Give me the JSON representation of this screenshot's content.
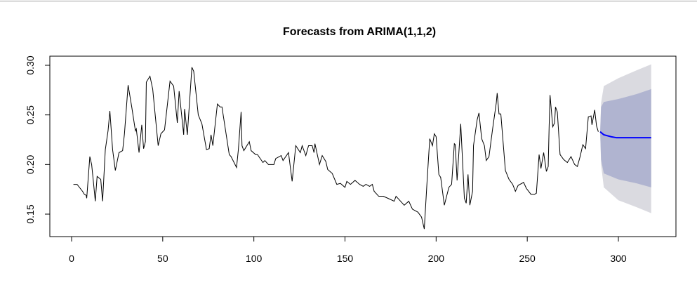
{
  "chart_data": {
    "type": "line",
    "title": "Forecasts from ARIMA(1,1,2)",
    "xlabel": "",
    "ylabel": "",
    "xlim": [
      -12,
      330
    ],
    "ylim": [
      0.127,
      0.309
    ],
    "xticks": [
      0,
      50,
      100,
      150,
      200,
      250,
      300
    ],
    "yticks": [
      0.15,
      0.2,
      0.25,
      0.3
    ],
    "xtick_labels": [
      "0",
      "50",
      "100",
      "150",
      "200",
      "250",
      "300"
    ],
    "ytick_labels": [
      "0.15",
      "0.20",
      "0.25",
      "0.30"
    ],
    "grid": false,
    "colors": {
      "observed": "#000000",
      "forecast": "#0000ff",
      "band80": "#b0b4d0",
      "band95": "#dadae0"
    },
    "observed": [
      [
        1,
        0.18
      ],
      [
        3,
        0.18
      ],
      [
        6,
        0.173
      ],
      [
        7,
        0.17
      ],
      [
        8,
        0.169
      ],
      [
        8.3,
        0.166
      ],
      [
        10,
        0.208
      ],
      [
        11,
        0.2
      ],
      [
        12,
        0.182
      ],
      [
        13,
        0.163
      ],
      [
        14,
        0.188
      ],
      [
        16,
        0.185
      ],
      [
        17,
        0.163
      ],
      [
        17.5,
        0.18
      ],
      [
        18.5,
        0.215
      ],
      [
        20,
        0.234
      ],
      [
        21,
        0.254
      ],
      [
        22.5,
        0.215
      ],
      [
        24,
        0.194
      ],
      [
        26,
        0.212
      ],
      [
        28,
        0.214
      ],
      [
        29,
        0.231
      ],
      [
        31,
        0.28
      ],
      [
        33,
        0.258
      ],
      [
        35,
        0.234
      ],
      [
        35.5,
        0.236
      ],
      [
        37,
        0.212
      ],
      [
        38.5,
        0.24
      ],
      [
        39.5,
        0.216
      ],
      [
        40.5,
        0.223
      ],
      [
        41,
        0.283
      ],
      [
        43,
        0.289
      ],
      [
        44.5,
        0.276
      ],
      [
        47.5,
        0.219
      ],
      [
        49,
        0.231
      ],
      [
        51,
        0.235
      ],
      [
        54,
        0.284
      ],
      [
        56,
        0.279
      ],
      [
        58,
        0.242
      ],
      [
        59,
        0.274
      ],
      [
        61.5,
        0.23
      ],
      [
        62,
        0.256
      ],
      [
        63.5,
        0.23
      ],
      [
        66,
        0.298
      ],
      [
        67,
        0.294
      ],
      [
        69.5,
        0.25
      ],
      [
        71.5,
        0.241
      ],
      [
        74,
        0.215
      ],
      [
        75.5,
        0.216
      ],
      [
        76.5,
        0.23
      ],
      [
        77.5,
        0.219
      ],
      [
        80,
        0.261
      ],
      [
        81.5,
        0.258
      ],
      [
        82.5,
        0.258
      ],
      [
        86.5,
        0.21
      ],
      [
        87.5,
        0.208
      ],
      [
        90.5,
        0.197
      ],
      [
        91.5,
        0.215
      ],
      [
        93,
        0.253
      ],
      [
        93.5,
        0.219
      ],
      [
        94.5,
        0.214
      ],
      [
        97.5,
        0.223
      ],
      [
        98.5,
        0.214
      ],
      [
        101,
        0.21
      ],
      [
        102,
        0.21
      ],
      [
        105,
        0.202
      ],
      [
        106,
        0.204
      ],
      [
        108,
        0.2
      ],
      [
        111,
        0.2
      ],
      [
        112,
        0.206
      ],
      [
        115,
        0.209
      ],
      [
        116,
        0.204
      ],
      [
        119,
        0.212
      ],
      [
        121,
        0.183
      ],
      [
        123,
        0.219
      ],
      [
        125.5,
        0.212
      ],
      [
        126.5,
        0.219
      ],
      [
        128.5,
        0.209
      ],
      [
        130,
        0.219
      ],
      [
        132,
        0.219
      ],
      [
        133,
        0.212
      ],
      [
        133.5,
        0.221
      ],
      [
        136,
        0.2
      ],
      [
        137.5,
        0.209
      ],
      [
        139.5,
        0.203
      ],
      [
        140.5,
        0.195
      ],
      [
        143,
        0.191
      ],
      [
        145.5,
        0.18
      ],
      [
        147.5,
        0.181
      ],
      [
        150,
        0.177
      ],
      [
        151,
        0.183
      ],
      [
        153,
        0.18
      ],
      [
        155.5,
        0.184
      ],
      [
        158,
        0.18
      ],
      [
        160,
        0.178
      ],
      [
        161.5,
        0.18
      ],
      [
        163.5,
        0.178
      ],
      [
        165,
        0.18
      ],
      [
        166,
        0.173
      ],
      [
        168.5,
        0.168
      ],
      [
        171,
        0.168
      ],
      [
        173.5,
        0.166
      ],
      [
        177,
        0.163
      ],
      [
        178,
        0.168
      ],
      [
        180,
        0.164
      ],
      [
        182.5,
        0.159
      ],
      [
        185,
        0.163
      ],
      [
        187,
        0.155
      ],
      [
        190,
        0.152
      ],
      [
        192,
        0.147
      ],
      [
        193.5,
        0.135
      ],
      [
        195,
        0.182
      ],
      [
        196.5,
        0.226
      ],
      [
        198,
        0.219
      ],
      [
        199,
        0.231
      ],
      [
        200,
        0.228
      ],
      [
        201.5,
        0.19
      ],
      [
        202.5,
        0.187
      ],
      [
        204.5,
        0.159
      ],
      [
        207,
        0.177
      ],
      [
        208.5,
        0.18
      ],
      [
        210,
        0.221
      ],
      [
        210.5,
        0.22
      ],
      [
        211.5,
        0.184
      ],
      [
        213.5,
        0.241
      ],
      [
        215.5,
        0.166
      ],
      [
        216.5,
        0.161
      ],
      [
        217.5,
        0.19
      ],
      [
        218.5,
        0.159
      ],
      [
        220,
        0.173
      ],
      [
        220.5,
        0.219
      ],
      [
        222.5,
        0.245
      ],
      [
        223.5,
        0.252
      ],
      [
        225,
        0.226
      ],
      [
        226.5,
        0.219
      ],
      [
        227.5,
        0.204
      ],
      [
        229,
        0.208
      ],
      [
        231,
        0.236
      ],
      [
        233,
        0.262
      ],
      [
        233.5,
        0.272
      ],
      [
        234.5,
        0.251
      ],
      [
        235.5,
        0.251
      ],
      [
        238,
        0.194
      ],
      [
        240,
        0.185
      ],
      [
        242,
        0.18
      ],
      [
        243.5,
        0.173
      ],
      [
        245,
        0.179
      ],
      [
        248,
        0.182
      ],
      [
        249.5,
        0.176
      ],
      [
        252,
        0.17
      ],
      [
        254,
        0.17
      ],
      [
        255,
        0.171
      ],
      [
        256.5,
        0.21
      ],
      [
        257.5,
        0.196
      ],
      [
        259,
        0.212
      ],
      [
        260.5,
        0.193
      ],
      [
        261.5,
        0.198
      ],
      [
        262,
        0.238
      ],
      [
        262.5,
        0.27
      ],
      [
        264,
        0.238
      ],
      [
        265,
        0.242
      ],
      [
        265.5,
        0.258
      ],
      [
        266.5,
        0.253
      ],
      [
        268,
        0.21
      ],
      [
        270,
        0.205
      ],
      [
        272,
        0.202
      ],
      [
        274,
        0.208
      ],
      [
        276,
        0.2
      ],
      [
        277.5,
        0.198
      ],
      [
        279,
        0.208
      ],
      [
        280.5,
        0.22
      ],
      [
        282,
        0.216
      ],
      [
        283.5,
        0.248
      ],
      [
        285,
        0.249
      ],
      [
        285.5,
        0.24
      ],
      [
        287,
        0.255
      ],
      [
        288,
        0.239
      ],
      [
        289,
        0.233
      ]
    ],
    "forecast": [
      [
        290,
        0.233
      ],
      [
        292,
        0.23
      ],
      [
        296,
        0.228
      ],
      [
        299,
        0.227
      ],
      [
        305,
        0.227
      ],
      [
        318,
        0.227
      ]
    ],
    "band80": {
      "x": [
        290,
        290.5,
        292,
        300,
        310,
        318
      ],
      "upper": [
        0.233,
        0.258,
        0.263,
        0.266,
        0.271,
        0.276
      ],
      "lower": [
        0.233,
        0.205,
        0.191,
        0.185,
        0.181,
        0.177
      ]
    },
    "band95": {
      "x": [
        290,
        290.5,
        292,
        300,
        310,
        318
      ],
      "upper": [
        0.233,
        0.262,
        0.279,
        0.287,
        0.295,
        0.301
      ],
      "lower": [
        0.233,
        0.2,
        0.177,
        0.164,
        0.157,
        0.151
      ]
    }
  }
}
